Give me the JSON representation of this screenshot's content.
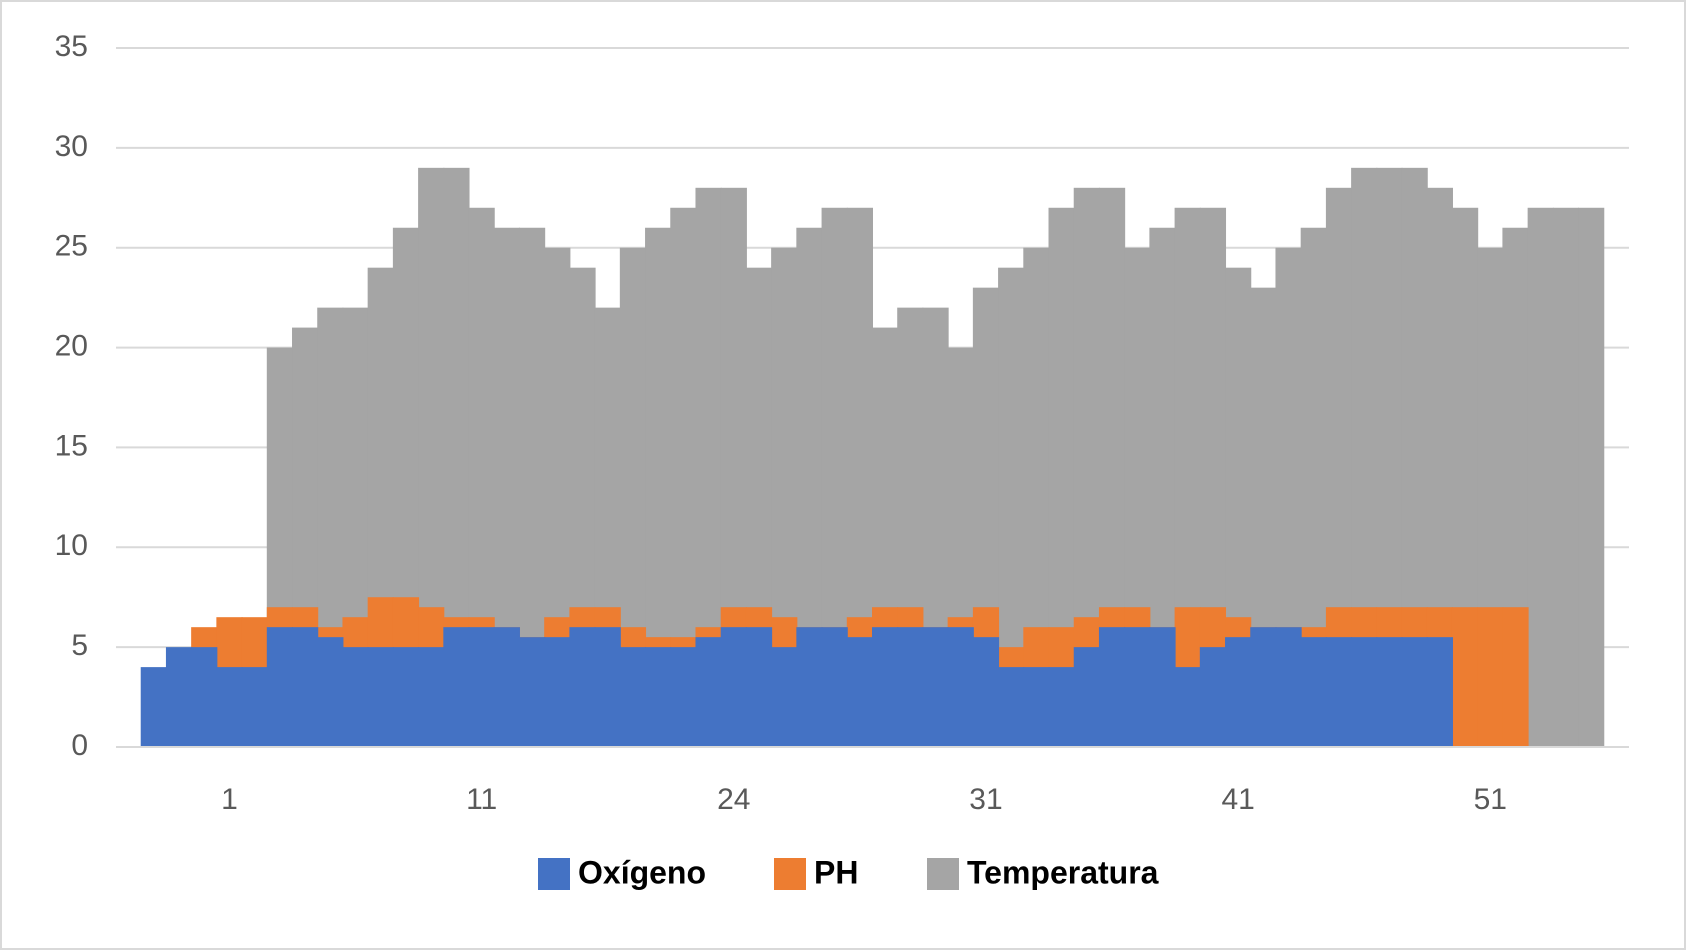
{
  "chart_data": {
    "type": "area",
    "categories": [
      null,
      null,
      null,
      null,
      1,
      null,
      null,
      null,
      null,
      null,
      null,
      null,
      null,
      null,
      11,
      null,
      null,
      null,
      null,
      null,
      null,
      null,
      null,
      null,
      24,
      null,
      null,
      null,
      null,
      null,
      null,
      null,
      null,
      null,
      31,
      null,
      null,
      null,
      null,
      null,
      null,
      null,
      null,
      null,
      41,
      null,
      null,
      null,
      null,
      null,
      null,
      null,
      null,
      null,
      51,
      null,
      null,
      null,
      null,
      null
    ],
    "series": [
      {
        "name": "Temperatura",
        "color": "#a5a5a5",
        "values": [
          null,
          null,
          null,
          null,
          null,
          null,
          20,
          21,
          22,
          22,
          24,
          26,
          29,
          29,
          27,
          26,
          26,
          25,
          24,
          22,
          25,
          26,
          27,
          28,
          28,
          24,
          25,
          26,
          27,
          27,
          21,
          22,
          22,
          20,
          23,
          24,
          25,
          27,
          28,
          28,
          25,
          26,
          27,
          27,
          24,
          23,
          25,
          26,
          28,
          29,
          29,
          29,
          28,
          27,
          25,
          26,
          27,
          27,
          27,
          null
        ]
      },
      {
        "name": "PH",
        "color": "#ed7d31",
        "values": [
          null,
          null,
          null,
          6,
          6.5,
          6.5,
          7,
          7,
          6,
          6.5,
          7.5,
          7.5,
          7,
          6.5,
          6.5,
          6,
          5.5,
          6.5,
          7,
          7,
          6,
          5.5,
          5.5,
          6,
          7,
          7,
          6.5,
          6,
          6,
          6.5,
          7,
          7,
          6,
          6.5,
          7,
          5,
          6,
          6,
          6.5,
          7,
          7,
          6,
          7,
          7,
          6.5,
          6,
          6,
          6,
          7,
          7,
          7,
          7,
          7,
          7,
          7,
          7,
          null,
          null,
          null,
          null
        ]
      },
      {
        "name": "Oxígeno",
        "color": "#4472c4",
        "values": [
          null,
          4,
          5,
          5,
          4,
          4,
          6,
          6,
          5.5,
          5,
          5,
          5,
          5,
          6,
          6,
          6,
          5.5,
          5.5,
          6,
          6,
          5,
          5,
          5,
          5.5,
          6,
          6,
          5,
          6,
          6,
          5.5,
          6,
          6,
          6,
          6,
          5.5,
          4,
          4,
          4,
          5,
          6,
          6,
          6,
          4,
          5,
          5.5,
          6,
          6,
          5.5,
          5.5,
          5.5,
          5.5,
          5.5,
          5.5,
          null,
          null,
          null,
          null,
          null,
          null,
          null
        ]
      }
    ],
    "legend_order": [
      "Oxígeno",
      "PH",
      "Temperatura"
    ],
    "ylim": [
      0,
      35
    ],
    "yticks": [
      0,
      5,
      10,
      15,
      20,
      25,
      30,
      35
    ],
    "grid": true,
    "legend": "bottom"
  }
}
